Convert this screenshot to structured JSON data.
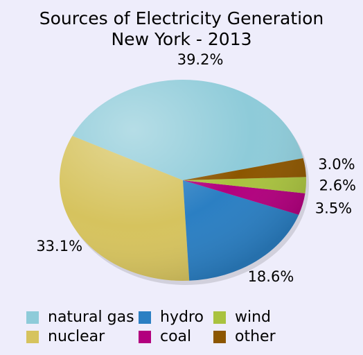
{
  "chart_data": {
    "type": "pie",
    "title": "Sources of Electricity Generation",
    "subtitle": "New York - 2013",
    "categories": [
      "natural gas",
      "nuclear",
      "hydro",
      "coal",
      "wind",
      "other"
    ],
    "values": [
      39.2,
      33.1,
      18.6,
      3.5,
      2.6,
      3.0
    ],
    "value_labels": [
      "39.2%",
      "33.1%",
      "18.6%",
      "3.5%",
      "2.6%",
      "3.0%"
    ],
    "colors": [
      "#8ecbd9",
      "#d6c35e",
      "#2b7fc3",
      "#b2007e",
      "#a9c23f",
      "#8c5600"
    ]
  }
}
